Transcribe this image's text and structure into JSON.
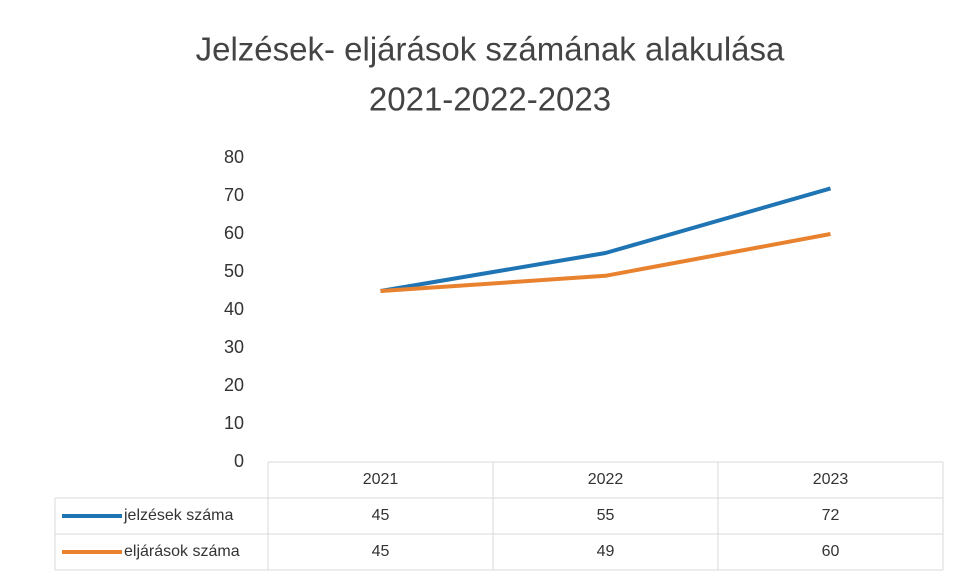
{
  "chart_data": {
    "type": "line",
    "title": "Jelzések- eljárások számának alakulása",
    "subtitle": "2021-2022-2023",
    "categories": [
      "2021",
      "2022",
      "2023"
    ],
    "series": [
      {
        "name": "jelzések száma",
        "color": "#1f74b4",
        "values": [
          45,
          55,
          72
        ]
      },
      {
        "name": "eljárások száma",
        "color": "#e8822f",
        "values": [
          45,
          49,
          60
        ]
      }
    ],
    "ylim": [
      0,
      80
    ],
    "yticks": [
      0,
      10,
      20,
      30,
      40,
      50,
      60,
      70,
      80
    ],
    "grid": false
  }
}
